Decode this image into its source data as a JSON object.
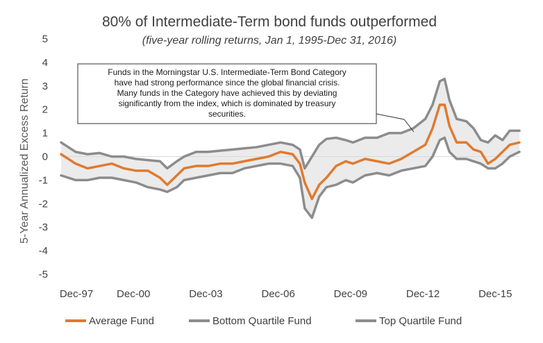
{
  "chart_data": {
    "type": "area",
    "title": "80% of Intermediate-Term bond funds outperformed",
    "subtitle": "(five-year rolling returns, Jan 1, 1995-Dec 31, 2016)",
    "ylabel": "5-Year Annualized Excess Return",
    "xlabel": "",
    "ylim": [
      -5,
      5
    ],
    "yticks": [
      "5",
      "4",
      "3",
      "2",
      "1",
      "0",
      "-1",
      "-2",
      "-3",
      "-4",
      "-5"
    ],
    "xlim": [
      1997.9,
      2016.9
    ],
    "xticks": [
      {
        "label": "Dec-97",
        "x": 1997.9
      },
      {
        "label": "Dec-00",
        "x": 2000.9
      },
      {
        "label": "Dec-03",
        "x": 2003.9
      },
      {
        "label": "Dec-06",
        "x": 2006.9
      },
      {
        "label": "Dec-09",
        "x": 2009.9
      },
      {
        "label": "Dec-12",
        "x": 2012.9
      },
      {
        "label": "Dec-15",
        "x": 2015.9
      }
    ],
    "x": [
      1997.9,
      1998.5,
      1999.0,
      1999.5,
      2000.0,
      2000.5,
      2001.0,
      2001.5,
      2002.0,
      2002.3,
      2002.7,
      2003.0,
      2003.5,
      2004.0,
      2004.5,
      2005.0,
      2005.5,
      2006.0,
      2006.5,
      2007.0,
      2007.5,
      2007.8,
      2008.0,
      2008.3,
      2008.6,
      2008.9,
      2009.3,
      2009.7,
      2010.0,
      2010.5,
      2011.0,
      2011.5,
      2012.0,
      2012.5,
      2013.0,
      2013.3,
      2013.6,
      2013.8,
      2014.0,
      2014.3,
      2014.7,
      2015.0,
      2015.3,
      2015.6,
      2015.9,
      2016.2,
      2016.5,
      2016.9
    ],
    "series": [
      {
        "name": "Top Quartile Fund",
        "color": "#8c8c8c",
        "values": [
          0.6,
          0.2,
          0.1,
          0.15,
          0.0,
          0.0,
          -0.1,
          -0.15,
          -0.2,
          -0.5,
          -0.2,
          0.0,
          0.2,
          0.2,
          0.25,
          0.3,
          0.35,
          0.4,
          0.5,
          0.6,
          0.5,
          0.3,
          -0.5,
          0.0,
          0.5,
          0.75,
          0.8,
          0.7,
          0.6,
          0.8,
          0.8,
          1.0,
          1.0,
          1.2,
          1.6,
          2.2,
          3.2,
          3.3,
          2.4,
          1.6,
          1.5,
          1.2,
          0.7,
          0.6,
          0.9,
          0.7,
          1.1,
          1.1
        ]
      },
      {
        "name": "Average Fund",
        "color": "#e07a30",
        "values": [
          0.1,
          -0.3,
          -0.5,
          -0.4,
          -0.3,
          -0.5,
          -0.6,
          -0.6,
          -0.9,
          -1.2,
          -0.8,
          -0.5,
          -0.4,
          -0.4,
          -0.3,
          -0.3,
          -0.2,
          -0.1,
          0.0,
          0.2,
          0.1,
          -0.3,
          -1.1,
          -1.8,
          -1.2,
          -0.9,
          -0.4,
          -0.2,
          -0.3,
          -0.1,
          -0.2,
          -0.3,
          -0.1,
          0.2,
          0.5,
          1.2,
          2.2,
          2.2,
          1.3,
          0.6,
          0.6,
          0.3,
          0.2,
          -0.3,
          -0.1,
          0.2,
          0.5,
          0.6
        ]
      },
      {
        "name": "Bottom Quartile Fund",
        "color": "#8c8c8c",
        "values": [
          -0.8,
          -1.0,
          -1.0,
          -0.9,
          -0.9,
          -1.0,
          -1.1,
          -1.3,
          -1.4,
          -1.5,
          -1.3,
          -1.0,
          -0.9,
          -0.8,
          -0.7,
          -0.7,
          -0.5,
          -0.4,
          -0.3,
          -0.3,
          -0.4,
          -0.9,
          -2.2,
          -2.6,
          -1.7,
          -1.3,
          -1.2,
          -1.0,
          -1.1,
          -0.8,
          -0.7,
          -0.8,
          -0.6,
          -0.5,
          -0.4,
          0.0,
          0.7,
          0.8,
          0.2,
          -0.1,
          -0.1,
          -0.2,
          -0.3,
          -0.5,
          -0.5,
          -0.3,
          0.0,
          0.2
        ]
      }
    ],
    "legend": {
      "position": "bottom",
      "entries": [
        {
          "label": "Average Fund",
          "color": "#e07a30"
        },
        {
          "label": "Bottom Quartile Fund",
          "color": "#8c8c8c"
        },
        {
          "label": "Top Quartile Fund",
          "color": "#8c8c8c"
        }
      ]
    },
    "annotation": {
      "lines": [
        "Funds in the Morningstar U.S. Intermediate-Term Bond Category",
        "have had strong performance since the global financial crisis.",
        "Many funds in the Category have achieved this by deviating",
        "significantly from the index, which is dominated by treasury",
        "securities."
      ]
    },
    "band_color": "#ebebeb",
    "grid": false
  }
}
